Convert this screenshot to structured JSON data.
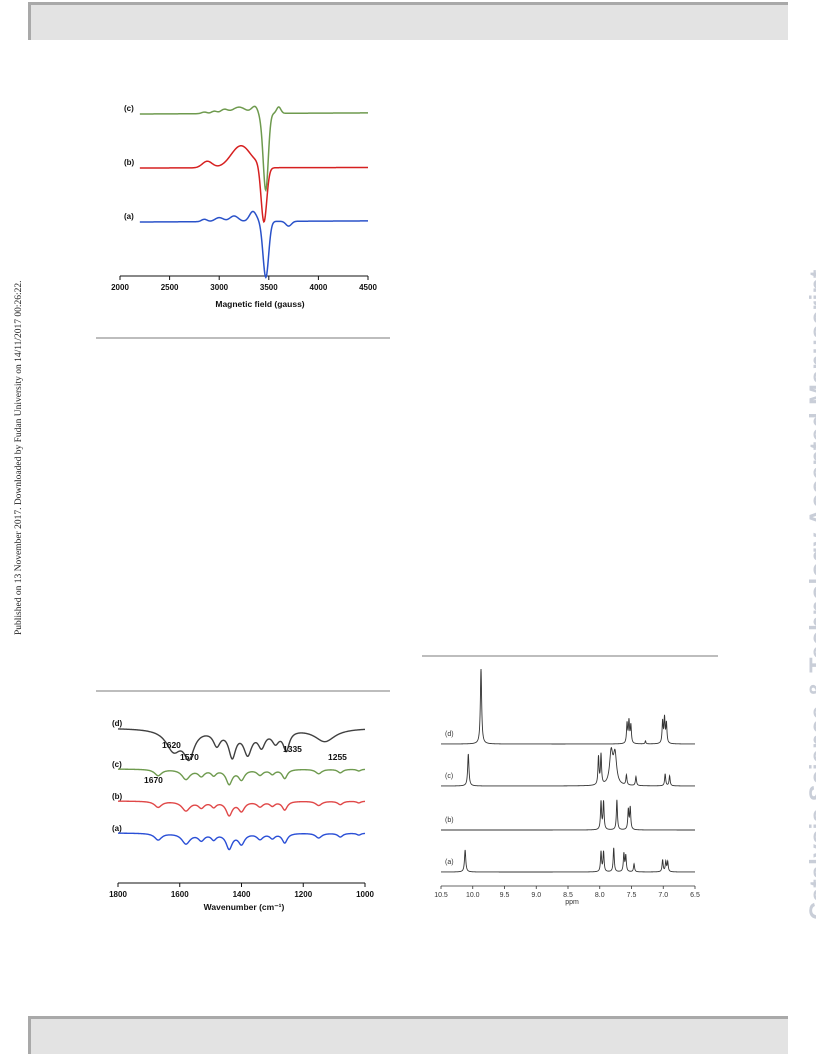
{
  "side_note": "Published on 13 November 2017. Downloaded by Fudan University on 14/11/2017 00:26:22.",
  "watermark": "Catalysis Science & Technology Accepted Manuscript",
  "chart_data": [
    {
      "type": "line",
      "xlabel": "Magnetic field (gauss)",
      "ylabel": "",
      "xlim": [
        2000,
        4500
      ],
      "xticks": [
        "2000",
        "2500",
        "3000",
        "3500",
        "4000",
        "4500"
      ],
      "series": [
        {
          "name": "(c)",
          "color": "#6e9a4e",
          "trough_x": 3470
        },
        {
          "name": "(b)",
          "color": "#d62020",
          "trough_x": 3450
        },
        {
          "name": "(a)",
          "color": "#2a52c9",
          "trough_x": 3470
        }
      ]
    },
    {
      "type": "line",
      "xlabel": "Wavenumber (cm⁻¹)",
      "ylabel": "",
      "xlim": [
        1800,
        1000
      ],
      "xticks": [
        "1800",
        "1600",
        "1400",
        "1200",
        "1000"
      ],
      "annotations": [
        "1620",
        "1570",
        "1335",
        "1255",
        "1670"
      ],
      "series": [
        {
          "name": "(d)",
          "color": "#404040"
        },
        {
          "name": "(c)",
          "color": "#6e9a4e"
        },
        {
          "name": "(b)",
          "color": "#e04848"
        },
        {
          "name": "(a)",
          "color": "#2a4fd6"
        }
      ]
    },
    {
      "type": "line",
      "xlabel": "ppm",
      "ylabel": "",
      "xlim": [
        10.5,
        6.5
      ],
      "xticks": [
        "10.5",
        "10.0",
        "9.5",
        "9.0",
        "8.5",
        "8.0",
        "7.5",
        "7.0",
        "6.5"
      ],
      "series": [
        {
          "name": "(d)",
          "color": "#333333"
        },
        {
          "name": "(c)",
          "color": "#333333"
        },
        {
          "name": "(b)",
          "color": "#333333"
        },
        {
          "name": "(a)",
          "color": "#333333"
        }
      ]
    }
  ]
}
